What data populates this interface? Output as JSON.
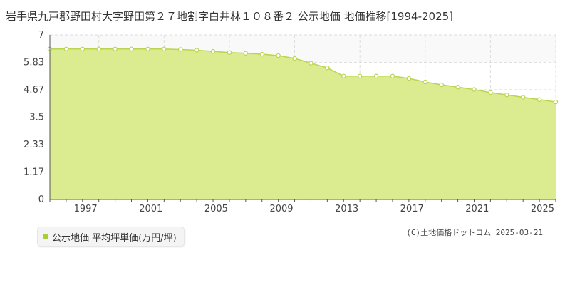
{
  "colors": {
    "series_fill": "#dbeb8f",
    "series_line": "#b9d44f",
    "marker_fill": "#ffffff",
    "legend_swatch": "#a8cf3a",
    "grid": "#dddddd",
    "axis": "#555555"
  },
  "legend": {
    "label": "公示地価 平均坪単価(万円/坪)"
  },
  "credit": "(C)土地価格ドットコム 2025-03-21",
  "chart_data": {
    "type": "area",
    "title": "岩手県九戸郡野田村大字野田第２７地割字白井林１０８番２ 公示地価 地価推移[1994-2025]",
    "xlabel": "",
    "ylabel": "",
    "xlim": [
      1994,
      2025
    ],
    "ylim": [
      0,
      7
    ],
    "yticks": [
      "0",
      "1.17",
      "2.33",
      "3.5",
      "4.67",
      "5.83",
      "7"
    ],
    "xticks": [
      "1997",
      "2001",
      "2005",
      "2009",
      "2013",
      "2017",
      "2021",
      "2025"
    ],
    "grid": true,
    "legend_position": "bottom-left",
    "series": [
      {
        "name": "公示地価 平均坪単価(万円/坪)",
        "x": [
          1994,
          1995,
          1996,
          1997,
          1998,
          1999,
          2000,
          2001,
          2002,
          2003,
          2004,
          2005,
          2006,
          2007,
          2008,
          2009,
          2010,
          2011,
          2012,
          2013,
          2014,
          2015,
          2016,
          2017,
          2018,
          2019,
          2020,
          2021,
          2022,
          2023,
          2024,
          2025
        ],
        "values": [
          6.4,
          6.4,
          6.4,
          6.4,
          6.4,
          6.4,
          6.4,
          6.4,
          6.38,
          6.35,
          6.3,
          6.25,
          6.22,
          6.18,
          6.12,
          6.0,
          5.8,
          5.6,
          5.25,
          5.25,
          5.25,
          5.25,
          5.15,
          5.0,
          4.88,
          4.78,
          4.68,
          4.55,
          4.45,
          4.35,
          4.25,
          4.15
        ]
      }
    ]
  }
}
